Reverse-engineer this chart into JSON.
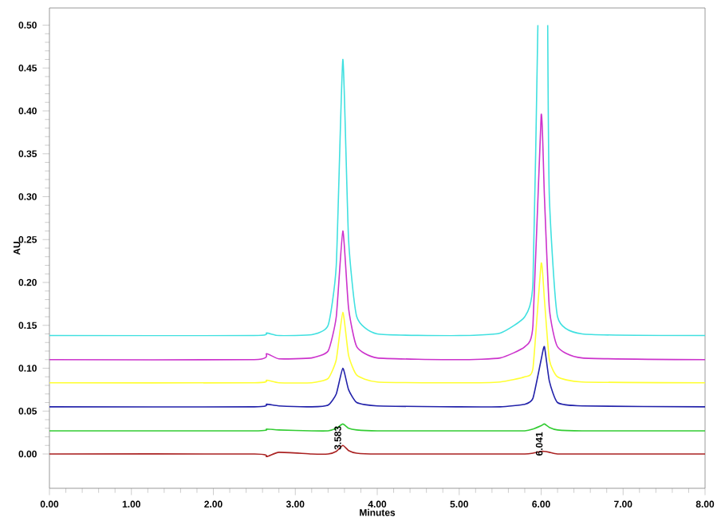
{
  "chart_data": {
    "type": "line",
    "xlabel": "Minutes",
    "ylabel": "AU",
    "xlim": [
      0,
      8
    ],
    "ylim": [
      -0.04,
      0.52
    ],
    "xticks": [
      {
        "value": 0,
        "label": "0.00"
      },
      {
        "value": 1,
        "label": "1.00"
      },
      {
        "value": 2,
        "label": "2.00"
      },
      {
        "value": 3,
        "label": "3.00"
      },
      {
        "value": 4,
        "label": "4.00"
      },
      {
        "value": 5,
        "label": "5.00"
      },
      {
        "value": 6,
        "label": "6.00"
      },
      {
        "value": 7,
        "label": "7.00"
      },
      {
        "value": 8,
        "label": "8.00"
      }
    ],
    "yticks": [
      {
        "value": 0,
        "label": "0.00"
      },
      {
        "value": 0.05,
        "label": "0.05"
      },
      {
        "value": 0.1,
        "label": "0.10"
      },
      {
        "value": 0.15,
        "label": "0.15"
      },
      {
        "value": 0.2,
        "label": "0.20"
      },
      {
        "value": 0.25,
        "label": "0.25"
      },
      {
        "value": 0.3,
        "label": "0.30"
      },
      {
        "value": 0.35,
        "label": "0.35"
      },
      {
        "value": 0.4,
        "label": "0.40"
      },
      {
        "value": 0.45,
        "label": "0.45"
      },
      {
        "value": 0.5,
        "label": "0.50"
      }
    ],
    "x": [
      0,
      2.5,
      2.65,
      2.8,
      3.2,
      3.4,
      3.5,
      3.58,
      3.65,
      3.75,
      4.0,
      5.0,
      5.5,
      5.8,
      5.9,
      6.0,
      6.04,
      6.1,
      6.2,
      6.5,
      8
    ],
    "series": [
      {
        "color": "#40e0e0",
        "x": [
          0,
          2.5,
          2.65,
          2.8,
          3.2,
          3.4,
          3.5,
          3.58,
          3.65,
          3.75,
          4.0,
          5.0,
          5.5,
          5.8,
          5.9,
          5.96,
          6.0,
          6.04,
          6.08,
          6.1,
          6.2,
          6.5,
          8
        ],
        "values": [
          0.138,
          0.138,
          0.141,
          0.138,
          0.139,
          0.15,
          0.22,
          0.46,
          0.25,
          0.16,
          0.14,
          0.138,
          0.141,
          0.16,
          0.2,
          0.5,
          null,
          null,
          0.5,
          0.3,
          0.16,
          0.14,
          0.138
        ]
      },
      {
        "color": "#cc33cc",
        "values": [
          0.11,
          0.11,
          0.117,
          0.111,
          0.112,
          0.12,
          0.16,
          0.26,
          0.17,
          0.125,
          0.112,
          0.11,
          0.112,
          0.125,
          0.15,
          0.395,
          0.3,
          0.17,
          0.125,
          0.112,
          0.11
        ]
      },
      {
        "color": "#ffff33",
        "values": [
          0.083,
          0.083,
          0.086,
          0.083,
          0.083,
          0.088,
          0.11,
          0.165,
          0.115,
          0.092,
          0.084,
          0.083,
          0.084,
          0.09,
          0.1,
          0.222,
          0.18,
          0.11,
          0.09,
          0.084,
          0.083
        ]
      },
      {
        "color": "#2222aa",
        "values": [
          0.055,
          0.055,
          0.058,
          0.056,
          0.055,
          0.057,
          0.07,
          0.1,
          0.075,
          0.06,
          0.056,
          0.055,
          0.055,
          0.058,
          0.065,
          0.11,
          0.125,
          0.085,
          0.06,
          0.056,
          0.055
        ]
      },
      {
        "color": "#33cc33",
        "values": [
          0.027,
          0.027,
          0.029,
          0.028,
          0.027,
          0.027,
          0.03,
          0.035,
          0.03,
          0.028,
          0.027,
          0.027,
          0.027,
          0.027,
          0.029,
          0.033,
          0.035,
          0.031,
          0.028,
          0.027,
          0.027
        ]
      },
      {
        "color": "#aa2222",
        "values": [
          0,
          0,
          -0.003,
          0.002,
          0,
          0,
          0.003,
          0.01,
          0.004,
          0.001,
          0,
          0,
          0,
          0,
          0.001,
          0.003,
          0.003,
          0.002,
          0,
          0,
          0
        ]
      }
    ],
    "annotations": [
      {
        "text": "3.583",
        "x": 3.583,
        "y": 0.01
      },
      {
        "text": "6.041",
        "x": 6.041,
        "y": 0.003
      }
    ]
  }
}
